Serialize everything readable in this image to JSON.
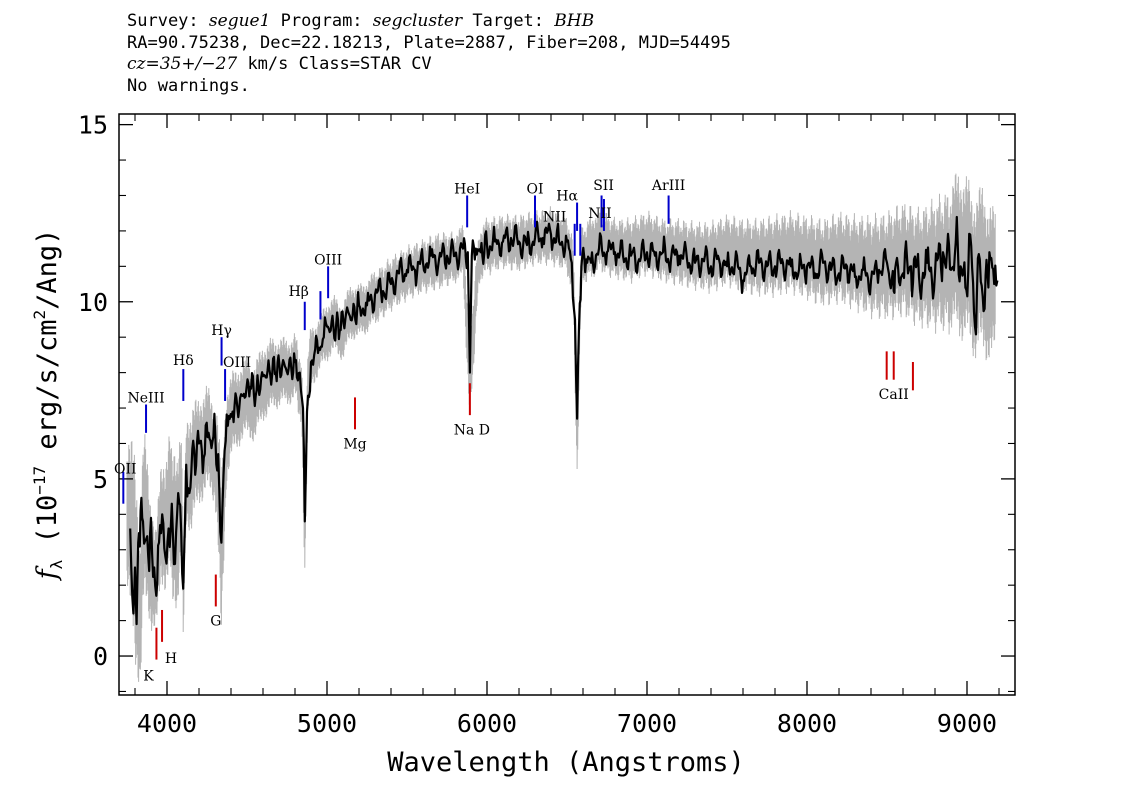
{
  "header": {
    "survey_label": "Survey:",
    "survey": "segue1",
    "program_label": "Program:",
    "program": "segcluster",
    "target_label": "Target:",
    "target": "BHB",
    "line2": "RA=90.75238, Dec=22.18213, Plate=2887, Fiber=208, MJD=54495",
    "cz": "cz=35+/−27",
    "cz_rest": " km/s Class=STAR CV",
    "warnings": "No warnings."
  },
  "chart_data": {
    "type": "line",
    "xlabel": "Wavelength (Angstroms)",
    "ylabel_prefix": "f",
    "ylabel_sub": "λ",
    "ylabel_body": " (10",
    "ylabel_exp": "−17",
    "ylabel_mid": " erg/s/cm",
    "ylabel_exp2": "2",
    "ylabel_end": "/Ang)",
    "xlim": [
      3700,
      9300
    ],
    "ylim": [
      -1.1,
      15.3
    ],
    "xticks": [
      4000,
      5000,
      6000,
      7000,
      8000,
      9000
    ],
    "xtick_labels": [
      "4000",
      "5000",
      "6000",
      "7000",
      "8000",
      "9000"
    ],
    "yticks": [
      0,
      5,
      10,
      15
    ],
    "ytick_labels": [
      "0",
      "5",
      "10",
      "15"
    ],
    "series": [
      {
        "role": "error",
        "color": "#b4b4b4",
        "x": [
          3750,
          3800,
          3830,
          3850,
          3870,
          3900,
          3930,
          3960,
          3990,
          4020,
          4060,
          4090,
          4101,
          4120,
          4150,
          4200,
          4250,
          4300,
          4340,
          4370,
          4400,
          4450,
          4500,
          4550,
          4600,
          4650,
          4700,
          4750,
          4800,
          4840,
          4861,
          4880,
          4900,
          4950,
          5000,
          5050,
          5100,
          5150,
          5200,
          5250,
          5300,
          5400,
          5500,
          5600,
          5700,
          5800,
          5850,
          5893,
          5950,
          6000,
          6100,
          6200,
          6300,
          6400,
          6500,
          6540,
          6563,
          6590,
          6650,
          6700,
          6800,
          6900,
          7000,
          7100,
          7200,
          7300,
          7400,
          7500,
          7600,
          7700,
          7800,
          7900,
          8000,
          8100,
          8200,
          8300,
          8400,
          8500,
          8600,
          8700,
          8800,
          8900,
          8950,
          9000,
          9050,
          9100,
          9150,
          9180
        ],
        "y_high": [
          6.4,
          6.0,
          3.5,
          6.2,
          6.6,
          4.6,
          3.9,
          5.4,
          5.2,
          6.8,
          5.5,
          6.9,
          3.5,
          7.2,
          7.0,
          7.5,
          7.7,
          7.3,
          6.0,
          7.5,
          8.0,
          8.3,
          8.5,
          8.3,
          8.9,
          9.0,
          9.1,
          9.0,
          9.2,
          8.5,
          5.5,
          8.6,
          9.4,
          9.6,
          10.1,
          10.2,
          10.0,
          10.6,
          10.5,
          10.7,
          10.9,
          11.3,
          11.6,
          11.8,
          12.0,
          12.0,
          12.2,
          9.2,
          12.1,
          12.4,
          12.5,
          12.5,
          12.6,
          12.7,
          12.5,
          11.7,
          8.0,
          12.1,
          12.5,
          12.7,
          12.4,
          12.4,
          12.6,
          12.4,
          12.4,
          12.3,
          12.3,
          12.5,
          12.4,
          12.4,
          12.5,
          12.6,
          12.5,
          12.4,
          12.6,
          12.5,
          12.5,
          12.6,
          12.9,
          12.7,
          13.0,
          13.3,
          14.0,
          13.6,
          13.2,
          13.4,
          12.9,
          12.6
        ],
        "y_low": [
          2.0,
          -0.6,
          -1.0,
          0.8,
          1.5,
          0.7,
          0.7,
          1.6,
          1.2,
          2.3,
          0.3,
          2.9,
          0.4,
          3.7,
          3.3,
          4.2,
          4.5,
          4.3,
          0.7,
          4.6,
          5.4,
          5.9,
          6.1,
          6.0,
          6.6,
          6.8,
          7.0,
          7.0,
          7.2,
          6.4,
          2.0,
          6.6,
          7.5,
          7.9,
          8.3,
          8.5,
          8.3,
          8.9,
          8.9,
          9.1,
          9.3,
          9.7,
          10.0,
          10.2,
          10.3,
          10.5,
          10.6,
          6.4,
          10.5,
          10.7,
          10.9,
          10.8,
          11.0,
          11.0,
          10.8,
          9.8,
          4.8,
          10.4,
          10.6,
          10.8,
          10.6,
          10.5,
          10.7,
          10.5,
          10.4,
          10.3,
          10.2,
          10.4,
          10.2,
          10.1,
          10.1,
          10.2,
          10.0,
          9.8,
          9.9,
          9.7,
          9.5,
          9.4,
          9.5,
          9.2,
          9.1,
          9.0,
          8.9,
          8.7,
          8.3,
          8.4,
          8.1,
          8.2
        ]
      },
      {
        "role": "flux",
        "color": "#000000",
        "x": [
          3770,
          3790,
          3800,
          3810,
          3820,
          3835,
          3850,
          3870,
          3889,
          3900,
          3920,
          3933,
          3950,
          3970,
          3990,
          4010,
          4030,
          4050,
          4070,
          4101,
          4120,
          4140,
          4170,
          4200,
          4230,
          4260,
          4290,
          4320,
          4340,
          4360,
          4380,
          4410,
          4440,
          4480,
          4520,
          4560,
          4600,
          4640,
          4680,
          4720,
          4760,
          4800,
          4830,
          4850,
          4861,
          4875,
          4900,
          4920,
          4950,
          4980,
          5000,
          5040,
          5080,
          5120,
          5160,
          5200,
          5250,
          5300,
          5350,
          5400,
          5450,
          5500,
          5550,
          5600,
          5650,
          5700,
          5750,
          5800,
          5850,
          5880,
          5893,
          5905,
          5930,
          5960,
          6000,
          6050,
          6100,
          6150,
          6200,
          6250,
          6300,
          6350,
          6400,
          6450,
          6500,
          6530,
          6550,
          6563,
          6575,
          6590,
          6620,
          6650,
          6700,
          6750,
          6800,
          6850,
          6900,
          6950,
          7000,
          7050,
          7100,
          7150,
          7200,
          7250,
          7300,
          7350,
          7400,
          7450,
          7500,
          7550,
          7600,
          7650,
          7700,
          7750,
          7800,
          7850,
          7900,
          7950,
          8000,
          8050,
          8100,
          8150,
          8200,
          8250,
          8300,
          8350,
          8400,
          8450,
          8500,
          8542,
          8550,
          8600,
          8650,
          8700,
          8750,
          8800,
          8850,
          8900,
          8930,
          8960,
          8990,
          9020,
          9050,
          9080,
          9110,
          9140,
          9170,
          9190
        ],
        "y": [
          3.6,
          1.2,
          2.5,
          0.9,
          3.2,
          4.1,
          3.8,
          3.3,
          2.4,
          3.9,
          2.5,
          1.7,
          3.2,
          4.0,
          2.8,
          3.6,
          4.3,
          2.6,
          4.6,
          1.9,
          5.4,
          4.6,
          5.8,
          6.0,
          5.6,
          6.3,
          6.2,
          5.7,
          3.2,
          5.8,
          6.5,
          6.9,
          7.0,
          7.4,
          7.6,
          7.5,
          7.9,
          8.1,
          8.0,
          8.2,
          8.1,
          8.3,
          8.0,
          7.0,
          3.8,
          6.9,
          8.3,
          8.5,
          8.7,
          9.0,
          9.3,
          9.3,
          9.2,
          9.7,
          9.6,
          9.9,
          9.9,
          10.2,
          10.3,
          10.5,
          10.8,
          10.9,
          10.9,
          11.1,
          11.3,
          11.2,
          11.3,
          11.3,
          11.5,
          11.4,
          8.0,
          11.3,
          11.5,
          11.4,
          11.6,
          11.7,
          11.7,
          11.8,
          11.7,
          11.6,
          11.8,
          11.8,
          11.9,
          11.7,
          11.7,
          11.1,
          9.5,
          6.7,
          9.3,
          11.0,
          11.2,
          11.1,
          11.5,
          11.4,
          11.4,
          11.3,
          11.3,
          11.2,
          11.4,
          11.3,
          11.4,
          11.2,
          11.3,
          11.2,
          11.1,
          11.2,
          11.0,
          11.2,
          11.0,
          11.1,
          10.6,
          11.0,
          11.1,
          11.0,
          11.0,
          11.1,
          11.0,
          10.9,
          11.0,
          10.8,
          11.1,
          10.9,
          10.8,
          11.0,
          10.7,
          10.9,
          10.6,
          10.9,
          11.1,
          10.3,
          10.9,
          10.8,
          11.0,
          10.7,
          11.1,
          10.8,
          11.4,
          10.9,
          11.7,
          11.0,
          10.4,
          11.9,
          9.3,
          11.2,
          9.8,
          11.4,
          10.5,
          10.6
        ]
      }
    ],
    "annotations": [
      {
        "label": "OII",
        "wavelength": 3727,
        "y_bottom": 4.3,
        "y_top": 5.2,
        "label_y": 5.3,
        "color": "#0000cc"
      },
      {
        "label": "NeIII",
        "wavelength": 3869,
        "y_bottom": 6.3,
        "y_top": 7.1,
        "label_y": 7.3,
        "color": "#0000cc"
      },
      {
        "label": "K",
        "wavelength": 3934,
        "y_bottom": -0.1,
        "y_top": 0.8,
        "label_y": -0.55,
        "color": "#cc0000"
      },
      {
        "label": "H",
        "wavelength": 3969,
        "y_bottom": 0.4,
        "y_top": 1.3,
        "label_y": -0.05,
        "color": "#cc0000"
      },
      {
        "label": "Hδ",
        "wavelength": 4102,
        "y_bottom": 7.2,
        "y_top": 8.1,
        "label_y": 8.35,
        "color": "#0000cc"
      },
      {
        "label": "G",
        "wavelength": 4305,
        "y_bottom": 1.4,
        "y_top": 2.3,
        "label_y": 1.0,
        "color": "#cc0000"
      },
      {
        "label": "Hγ",
        "wavelength": 4341,
        "y_bottom": 8.2,
        "y_top": 9.0,
        "label_y": 9.2,
        "color": "#0000cc"
      },
      {
        "label": "OIII",
        "wavelength": 4363,
        "y_bottom": 7.2,
        "y_top": 8.1,
        "label_y": 8.3,
        "color": "#0000cc"
      },
      {
        "label": "Hβ",
        "wavelength": 4861,
        "y_bottom": 9.2,
        "y_top": 10.0,
        "label_y": 10.3,
        "color": "#0000cc"
      },
      {
        "label": "OIII",
        "wavelength": 4959,
        "y_bottom": 9.5,
        "y_top": 10.3,
        "label_y": 0,
        "color": "#0000cc"
      },
      {
        "label": "OIII",
        "wavelength": 5007,
        "y_bottom": 10.1,
        "y_top": 11.0,
        "label_y": 11.2,
        "color": "#0000cc"
      },
      {
        "label": "Mg",
        "wavelength": 5175,
        "y_bottom": 6.4,
        "y_top": 7.3,
        "label_y": 6.0,
        "color": "#cc0000"
      },
      {
        "label": "HeI",
        "wavelength": 5876,
        "y_bottom": 12.1,
        "y_top": 13.0,
        "label_y": 13.2,
        "color": "#0000cc"
      },
      {
        "label": "Na D",
        "wavelength": 5893,
        "y_bottom": 6.8,
        "y_top": 7.7,
        "label_y": 6.4,
        "color": "#cc0000"
      },
      {
        "label": "OI",
        "wavelength": 6300,
        "y_bottom": 12.1,
        "y_top": 13.0,
        "label_y": 13.2,
        "color": "#0000cc"
      },
      {
        "label": "NII",
        "wavelength": 6548,
        "y_bottom": 11.3,
        "y_top": 12.2,
        "label_y": 12.4,
        "color": "#0000cc"
      },
      {
        "label": "Hα",
        "wavelength": 6563,
        "y_bottom": 12.0,
        "y_top": 12.8,
        "label_y": 13.0,
        "color": "#0000cc"
      },
      {
        "label": "NII",
        "wavelength": 6583,
        "y_bottom": 11.3,
        "y_top": 12.2,
        "label_y": 0,
        "color": "#0000cc"
      },
      {
        "label": "SII",
        "wavelength": 6716,
        "y_bottom": 12.1,
        "y_top": 13.0,
        "label_y": 13.3,
        "color": "#0000cc"
      },
      {
        "label": "NII",
        "wavelength": 6731,
        "y_bottom": 12.0,
        "y_top": 12.9,
        "label_y": 12.5,
        "color": "#0000cc"
      },
      {
        "label": "ArIII",
        "wavelength": 7135,
        "y_bottom": 12.2,
        "y_top": 13.0,
        "label_y": 13.3,
        "color": "#0000cc"
      },
      {
        "label": "CaII",
        "wavelength": 8498,
        "y_bottom": 7.8,
        "y_top": 8.6,
        "label_y": 0,
        "color": "#cc0000"
      },
      {
        "label": "CaII",
        "wavelength": 8542,
        "y_bottom": 7.8,
        "y_top": 8.6,
        "label_y": 7.4,
        "color": "#cc0000"
      },
      {
        "label": "CaII",
        "wavelength": 8662,
        "y_bottom": 7.5,
        "y_top": 8.3,
        "label_y": 0,
        "color": "#cc0000"
      }
    ]
  }
}
